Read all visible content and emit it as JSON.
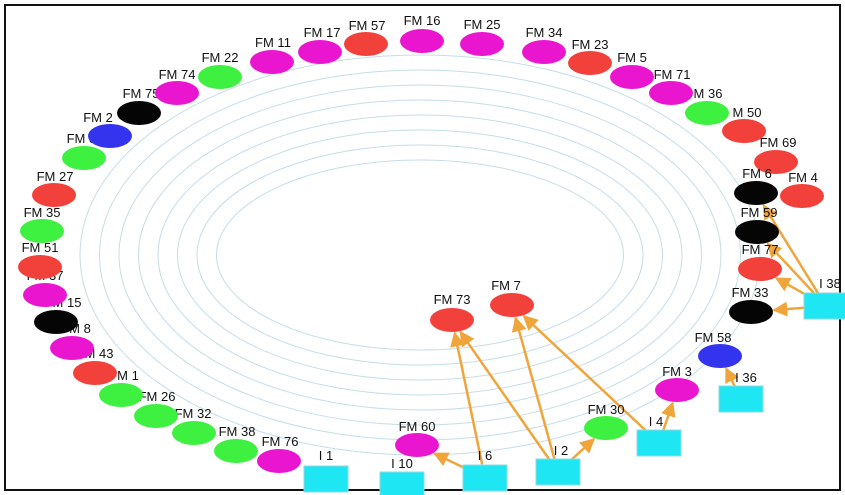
{
  "colors": {
    "red": "#f2413a",
    "magenta": "#ea16cf",
    "green": "#3ef040",
    "black": "#050505",
    "blue": "#3434ef",
    "cyan": "#1fe6f3",
    "edge": "#efa53a",
    "ring": "#c6dde6"
  },
  "rings": 8,
  "nodes": [
    {
      "id": "fm57",
      "label": "FM 57",
      "color": "red"
    },
    {
      "id": "fm16",
      "label": "FM 16",
      "color": "magenta"
    },
    {
      "id": "fm25",
      "label": "FM 25",
      "color": "magenta"
    },
    {
      "id": "fm34",
      "label": "FM 34",
      "color": "magenta"
    },
    {
      "id": "fm23",
      "label": "FM 23",
      "color": "red"
    },
    {
      "id": "fm5",
      "label": "FM 5",
      "color": "magenta"
    },
    {
      "id": "fm71",
      "label": "FM 71",
      "color": "magenta"
    },
    {
      "id": "fm36",
      "label": "M 36",
      "color": "green"
    },
    {
      "id": "fm50",
      "label": "M 50",
      "color": "red"
    },
    {
      "id": "fm69",
      "label": "FM 69",
      "color": "red"
    },
    {
      "id": "fm4",
      "label": "FM 4",
      "color": "red"
    },
    {
      "id": "fm6",
      "label": "FM 6",
      "color": "black"
    },
    {
      "id": "fm59",
      "label": "FM 59",
      "color": "black"
    },
    {
      "id": "fm77",
      "label": "FM 77",
      "color": "red"
    },
    {
      "id": "fm33",
      "label": "FM 33",
      "color": "black"
    },
    {
      "id": "fm58",
      "label": "FM 58",
      "color": "blue"
    },
    {
      "id": "fm3",
      "label": "FM 3",
      "color": "magenta"
    },
    {
      "id": "fm30",
      "label": "FM 30",
      "color": "green"
    },
    {
      "id": "fm60",
      "label": "FM 60",
      "color": "magenta"
    },
    {
      "id": "fm73",
      "label": "FM 73",
      "color": "red"
    },
    {
      "id": "fm7",
      "label": "FM 7",
      "color": "red"
    },
    {
      "id": "fm76",
      "label": "FM 76",
      "color": "magenta"
    },
    {
      "id": "fm38",
      "label": "FM 38",
      "color": "green"
    },
    {
      "id": "fm32",
      "label": "FM 32",
      "color": "green"
    },
    {
      "id": "fm26",
      "label": "FM 26",
      "color": "green"
    },
    {
      "id": "fm1",
      "label": "FM 1",
      "color": "green"
    },
    {
      "id": "fm43",
      "label": "FM 43",
      "color": "red"
    },
    {
      "id": "fm8",
      "label": "M 8",
      "color": "magenta"
    },
    {
      "id": "fm15",
      "label": "FM 15",
      "color": "black"
    },
    {
      "id": "fm37",
      "label": "FM 37",
      "color": "magenta"
    },
    {
      "id": "fm51",
      "label": "FM 51",
      "color": "red"
    },
    {
      "id": "fm35",
      "label": "FM 35",
      "color": "green"
    },
    {
      "id": "fm27",
      "label": "FM 27",
      "color": "red"
    },
    {
      "id": "fm31",
      "label": "FM 31",
      "color": "green"
    },
    {
      "id": "fm2",
      "label": "FM 2",
      "color": "blue"
    },
    {
      "id": "fm75",
      "label": "FM 75",
      "color": "black"
    },
    {
      "id": "fm74",
      "label": "FM 74",
      "color": "magenta"
    },
    {
      "id": "fm22",
      "label": "FM 22",
      "color": "green"
    },
    {
      "id": "fm11",
      "label": "FM 11",
      "color": "magenta"
    },
    {
      "id": "fm17",
      "label": "FM 17",
      "color": "magenta"
    }
  ],
  "sources": [
    {
      "id": "i1",
      "label": "I 1"
    },
    {
      "id": "i10",
      "label": "I 10"
    },
    {
      "id": "i6",
      "label": "I 6"
    },
    {
      "id": "i2",
      "label": "I 2"
    },
    {
      "id": "i4",
      "label": "I 4"
    },
    {
      "id": "i36",
      "label": "I 36"
    },
    {
      "id": "i38",
      "label": "I 38"
    }
  ],
  "edges": [
    {
      "from": "i6",
      "to": "fm60"
    },
    {
      "from": "i6",
      "to": "fm73"
    },
    {
      "from": "i2",
      "to": "fm73"
    },
    {
      "from": "i2",
      "to": "fm7"
    },
    {
      "from": "i4",
      "to": "fm7"
    },
    {
      "from": "i2",
      "to": "fm30"
    },
    {
      "from": "i4",
      "to": "fm3"
    },
    {
      "from": "i36",
      "to": "fm58"
    },
    {
      "from": "i38",
      "to": "fm33"
    },
    {
      "from": "i38",
      "to": "fm77"
    },
    {
      "from": "i38",
      "to": "fm59"
    },
    {
      "from": "i38",
      "to": "fm6"
    }
  ]
}
